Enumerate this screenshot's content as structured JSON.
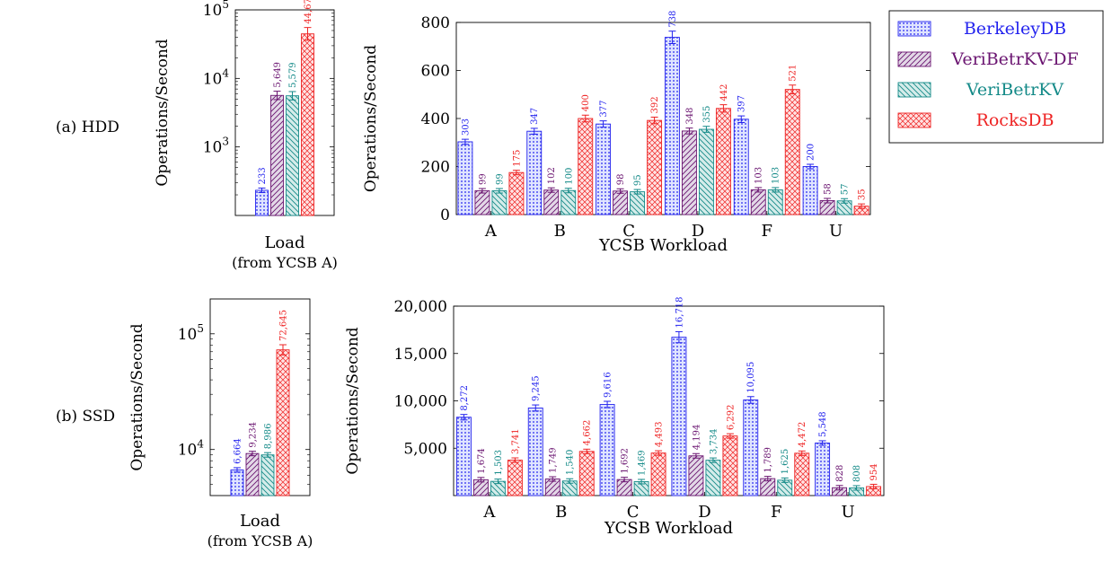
{
  "colors": {
    "BerkeleyDB": "#2323ee",
    "VeriBetrKV-DF": "#6a1470",
    "VeriBetrKV": "#148a88",
    "RocksDB": "#ee2323"
  },
  "legend": {
    "placement": "top-right",
    "entries": [
      "BerkeleyDB",
      "VeriBetrKV-DF",
      "VeriBetrKV",
      "RocksDB"
    ]
  },
  "row_labels": {
    "hdd": "(a) HDD",
    "ssd": "(b) SSD"
  },
  "chart_data": [
    {
      "id": "hdd_load",
      "type": "bar",
      "yscale": "log",
      "ylabel": "Operations/Second",
      "xlabel": "Load",
      "xlabel2": "(from YCSB A)",
      "ylim": [
        100,
        100000
      ],
      "yticks": [
        {
          "v": 1000,
          "b": "10",
          "e": "3"
        },
        {
          "v": 10000,
          "b": "10",
          "e": "4"
        },
        {
          "v": 100000,
          "b": "10",
          "e": "5"
        }
      ],
      "series": [
        {
          "name": "BerkeleyDB",
          "values": [
            233
          ],
          "labels": [
            "233"
          ]
        },
        {
          "name": "VeriBetrKV-DF",
          "values": [
            5649
          ],
          "labels": [
            "5,649"
          ]
        },
        {
          "name": "VeriBetrKV",
          "values": [
            5579
          ],
          "labels": [
            "5,579"
          ]
        },
        {
          "name": "RocksDB",
          "values": [
            44670
          ],
          "labels": [
            "44,670"
          ]
        }
      ]
    },
    {
      "id": "hdd_ycsb",
      "type": "bar",
      "yscale": "linear",
      "ylabel": "Operations/Second",
      "xlabel": "YCSB Workload",
      "categories": [
        "A",
        "B",
        "C",
        "D",
        "F",
        "U"
      ],
      "ylim": [
        0,
        800
      ],
      "yticks": [
        {
          "v": 0,
          "t": "0"
        },
        {
          "v": 200,
          "t": "200"
        },
        {
          "v": 400,
          "t": "400"
        },
        {
          "v": 600,
          "t": "600"
        },
        {
          "v": 800,
          "t": "800"
        }
      ],
      "series": [
        {
          "name": "BerkeleyDB",
          "values": [
            303,
            347,
            377,
            738,
            397,
            200
          ],
          "labels": [
            "303",
            "347",
            "377",
            "738",
            "397",
            "200"
          ]
        },
        {
          "name": "VeriBetrKV-DF",
          "values": [
            99,
            102,
            98,
            348,
            103,
            58
          ],
          "labels": [
            "99",
            "102",
            "98",
            "348",
            "103",
            "58"
          ]
        },
        {
          "name": "VeriBetrKV",
          "values": [
            99,
            100,
            95,
            355,
            103,
            57
          ],
          "labels": [
            "99",
            "100",
            "95",
            "355",
            "103",
            "57"
          ]
        },
        {
          "name": "RocksDB",
          "values": [
            175,
            400,
            392,
            442,
            521,
            35
          ],
          "labels": [
            "175",
            "400",
            "392",
            "442",
            "521",
            "35"
          ]
        }
      ]
    },
    {
      "id": "ssd_load",
      "type": "bar",
      "yscale": "log",
      "ylabel": "Operations/Second",
      "xlabel": "Load",
      "xlabel2": "(from YCSB A)",
      "ylim": [
        4000,
        200000
      ],
      "yticks": [
        {
          "v": 10000,
          "b": "10",
          "e": "4"
        },
        {
          "v": 100000,
          "b": "10",
          "e": "5"
        }
      ],
      "series": [
        {
          "name": "BerkeleyDB",
          "values": [
            6664
          ],
          "labels": [
            "6,664"
          ]
        },
        {
          "name": "VeriBetrKV-DF",
          "values": [
            9234
          ],
          "labels": [
            "9,234"
          ]
        },
        {
          "name": "VeriBetrKV",
          "values": [
            8986
          ],
          "labels": [
            "8,986"
          ]
        },
        {
          "name": "RocksDB",
          "values": [
            72645
          ],
          "labels": [
            "72,645"
          ]
        }
      ]
    },
    {
      "id": "ssd_ycsb",
      "type": "bar",
      "yscale": "linear",
      "ylabel": "Operations/Second",
      "xlabel": "YCSB Workload",
      "categories": [
        "A",
        "B",
        "C",
        "D",
        "F",
        "U"
      ],
      "ylim": [
        0,
        20000
      ],
      "yticks": [
        {
          "v": 5000,
          "t": "5,000"
        },
        {
          "v": 10000,
          "t": "10,000"
        },
        {
          "v": 15000,
          "t": "15,000"
        },
        {
          "v": 20000,
          "t": "20,000"
        }
      ],
      "series": [
        {
          "name": "BerkeleyDB",
          "values": [
            8272,
            9245,
            9616,
            16718,
            10095,
            5548
          ],
          "labels": [
            "8,272",
            "9,245",
            "9,616",
            "16,718",
            "10,095",
            "5,548"
          ]
        },
        {
          "name": "VeriBetrKV-DF",
          "values": [
            1674,
            1749,
            1692,
            4194,
            1789,
            828
          ],
          "labels": [
            "1,674",
            "1,749",
            "1,692",
            "4,194",
            "1,789",
            "828"
          ]
        },
        {
          "name": "VeriBetrKV",
          "values": [
            1503,
            1540,
            1469,
            3734,
            1625,
            808
          ],
          "labels": [
            "1,503",
            "1,540",
            "1,469",
            "3,734",
            "1,625",
            "808"
          ]
        },
        {
          "name": "RocksDB",
          "values": [
            3741,
            4662,
            4493,
            6292,
            4472,
            954
          ],
          "labels": [
            "3,741",
            "4,662",
            "4,493",
            "6,292",
            "4,472",
            "954"
          ]
        }
      ]
    }
  ]
}
